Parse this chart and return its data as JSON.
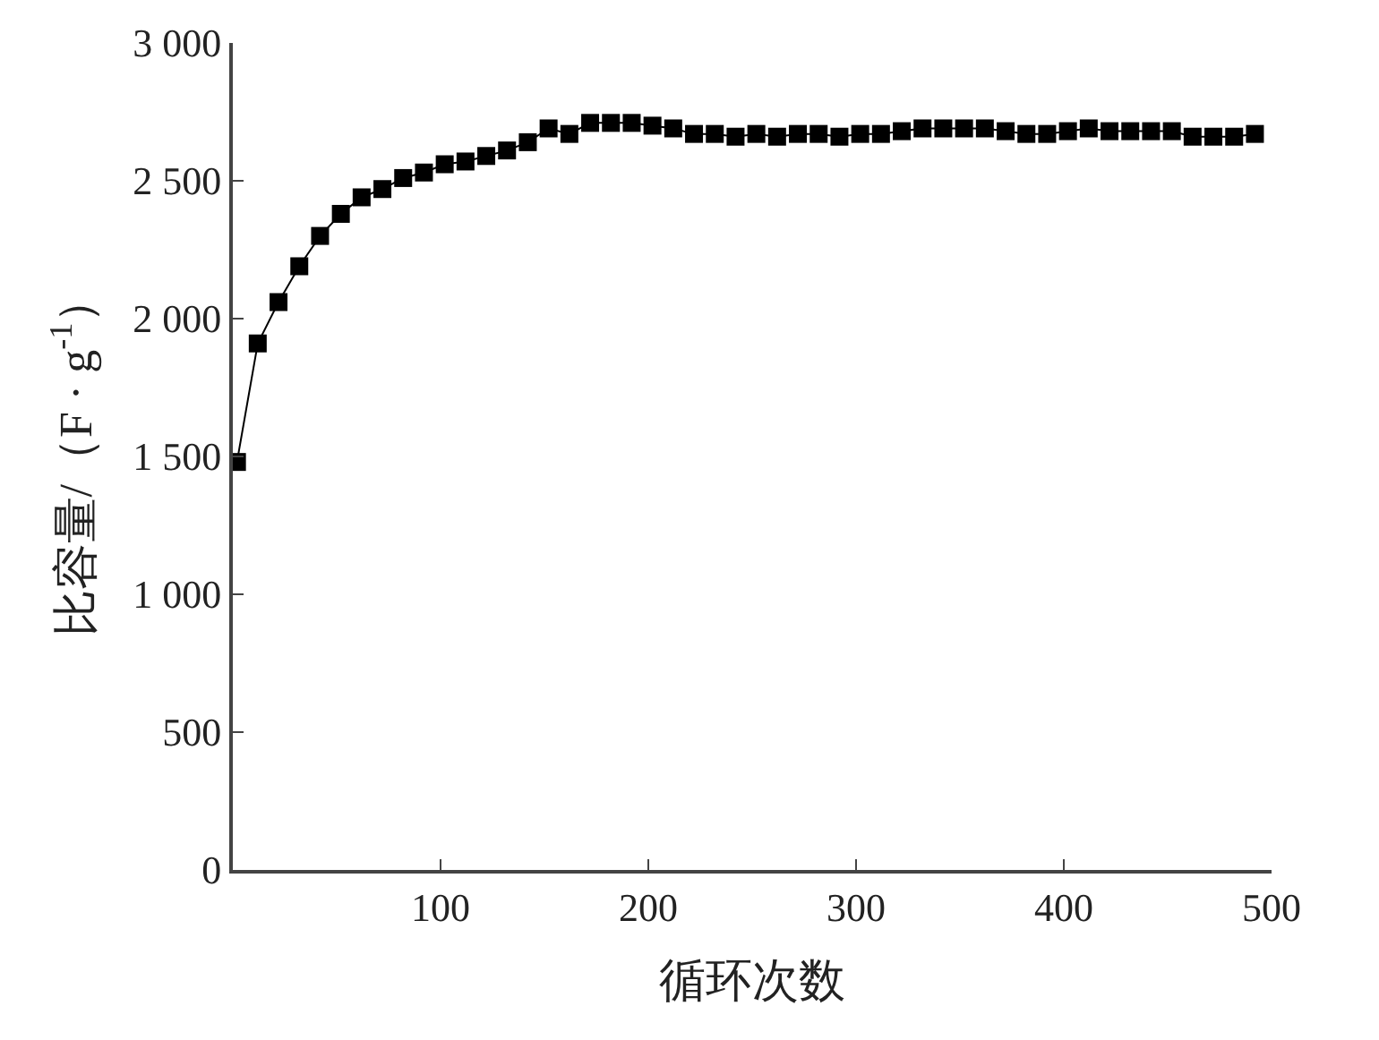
{
  "chart_data": {
    "type": "line",
    "xlabel": "循环次数",
    "ylabel": "比容量/（F · g$^{-1}$）",
    "x": [
      2,
      12,
      22,
      32,
      42,
      52,
      62,
      72,
      82,
      92,
      102,
      112,
      122,
      132,
      142,
      152,
      162,
      172,
      182,
      192,
      202,
      212,
      222,
      232,
      242,
      252,
      262,
      272,
      282,
      292,
      302,
      312,
      322,
      332,
      342,
      352,
      362,
      372,
      382,
      392,
      402,
      412,
      422,
      432,
      442,
      452,
      462,
      472,
      482,
      492
    ],
    "series": [
      {
        "color": "#000000",
        "values": [
          1480,
          1910,
          2060,
          2190,
          2300,
          2380,
          2440,
          2470,
          2510,
          2530,
          2560,
          2570,
          2590,
          2610,
          2640,
          2690,
          2670,
          2710,
          2710,
          2710,
          2700,
          2690,
          2670,
          2670,
          2660,
          2670,
          2660,
          2670,
          2670,
          2660,
          2670,
          2670,
          2680,
          2690,
          2690,
          2690,
          2690,
          2680,
          2670,
          2670,
          2680,
          2690,
          2680,
          2680,
          2680,
          2680,
          2660,
          2660,
          2660,
          2670
        ]
      }
    ],
    "xlim": [
      0,
      500
    ],
    "xticks": [
      100,
      200,
      300,
      400,
      500
    ],
    "ylim": [
      0,
      3000
    ],
    "yticks": [
      {
        "value": 0,
        "label": "0"
      },
      {
        "value": 500,
        "label": "500"
      },
      {
        "value": 1000,
        "label": "1 000"
      },
      {
        "value": 1500,
        "label": "1 500"
      },
      {
        "value": 2000,
        "label": "2 000"
      },
      {
        "value": 2500,
        "label": "2 500"
      },
      {
        "value": 3000,
        "label": "3 000"
      }
    ],
    "marker": "square",
    "line_style": "solid"
  }
}
